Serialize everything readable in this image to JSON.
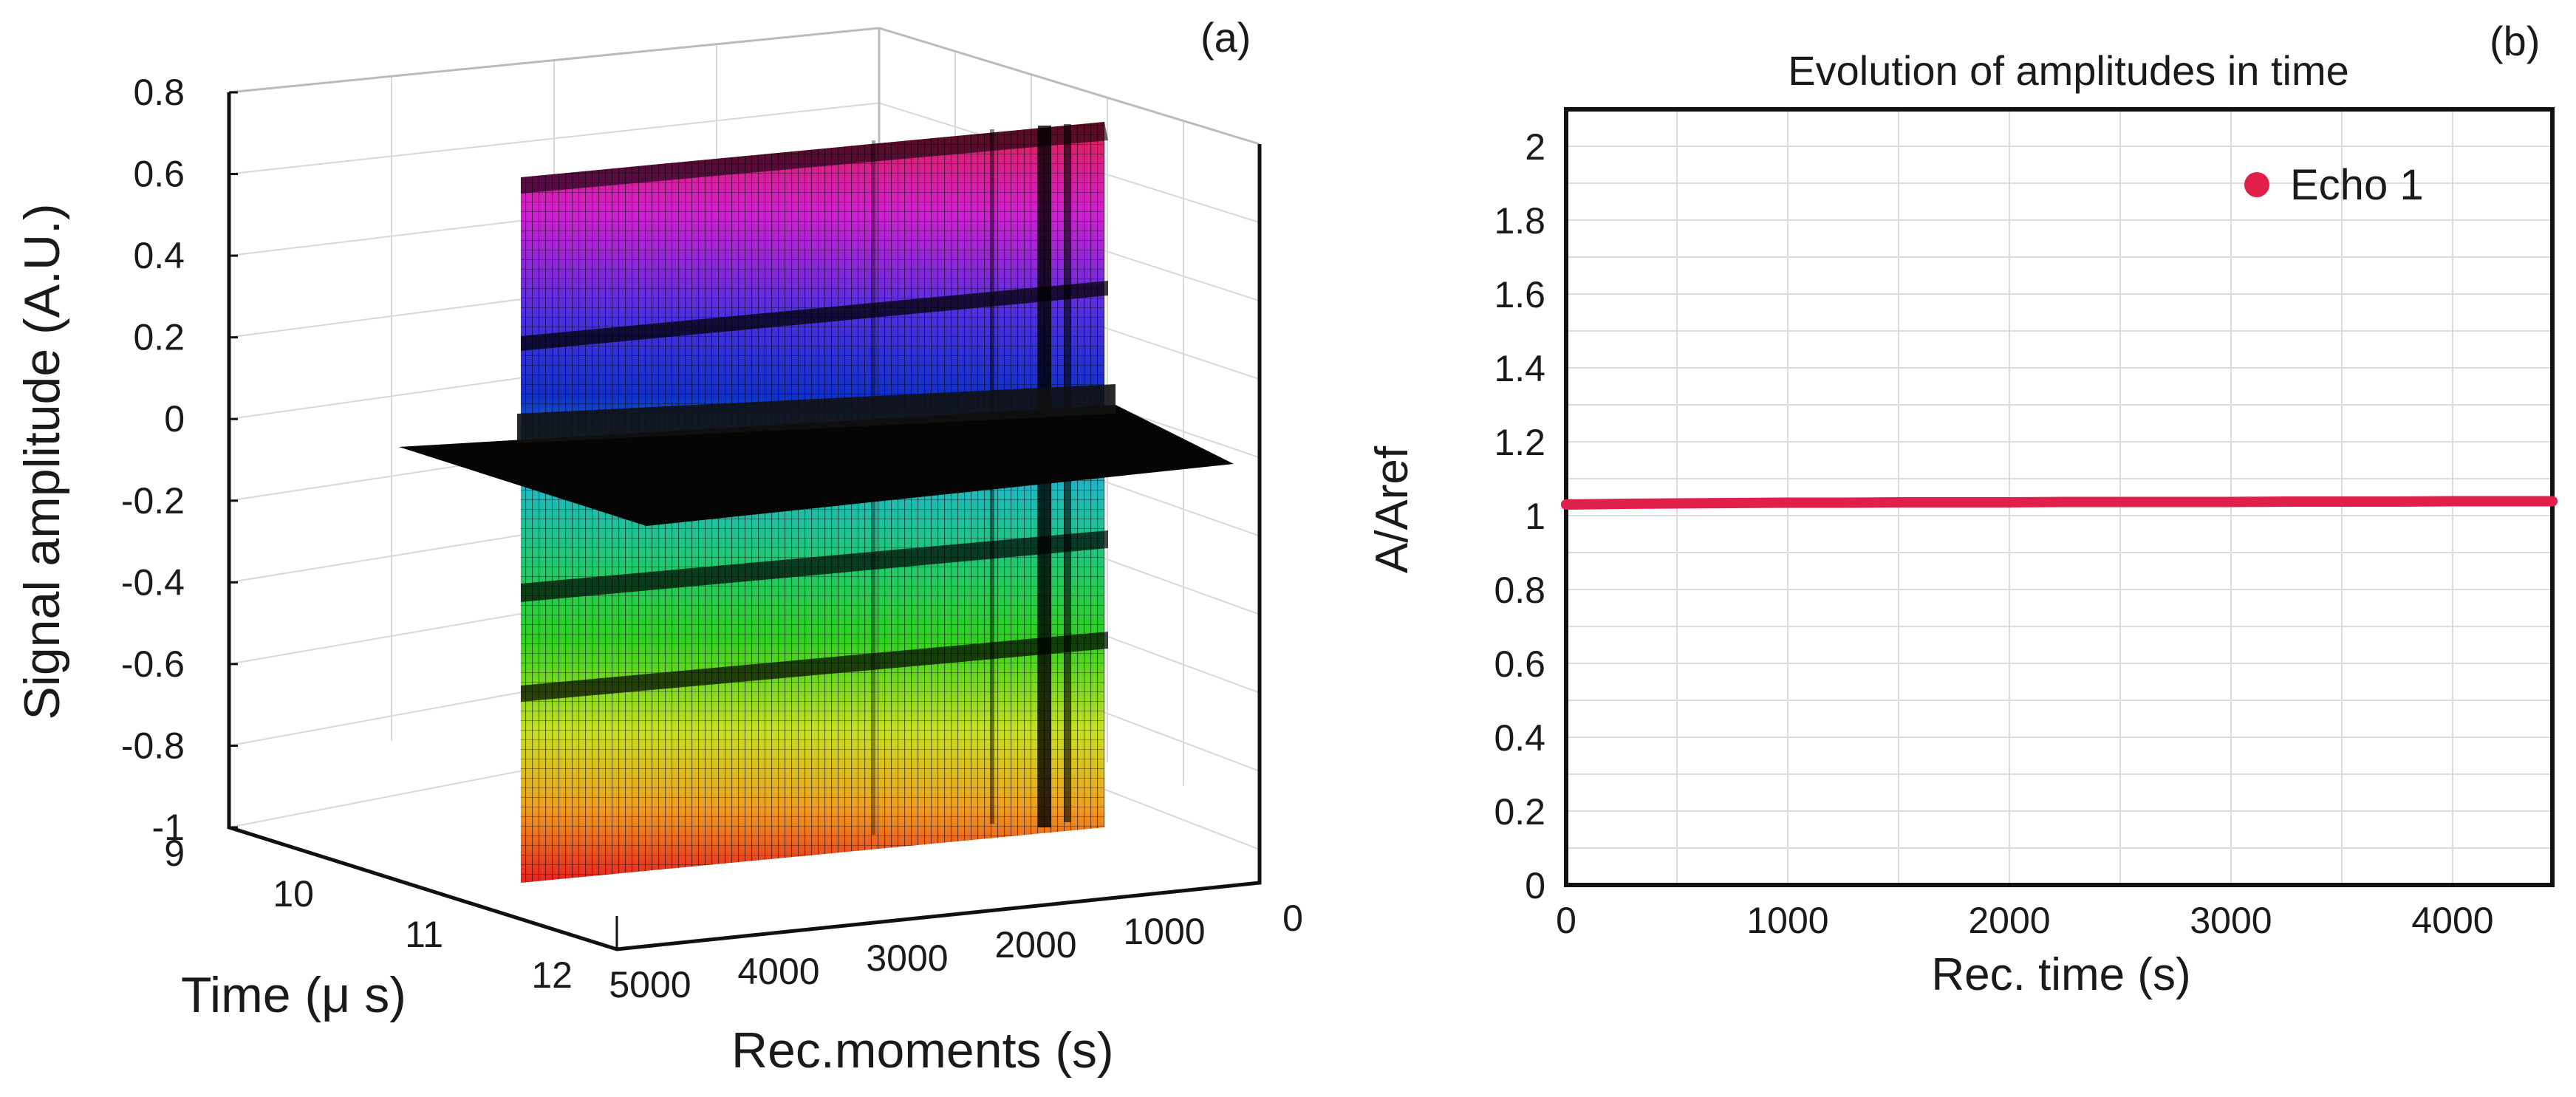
{
  "chart_data": [
    {
      "type": "surface",
      "panel_label": "(a)",
      "zlabel": "Signal amplitude (A.U.)",
      "xlabel": "Rec.moments (s)",
      "ylabel": "Time (μ s)",
      "zlim": [
        -1,
        0.8
      ],
      "z_ticks": [
        "0.8",
        "0.6",
        "0.4",
        "0.2",
        "0",
        "-0.2",
        "-0.4",
        "-0.6",
        "-0.8",
        "-1"
      ],
      "time_ticks": [
        "9",
        "10",
        "11",
        "12"
      ],
      "moment_ticks": [
        "5000",
        "4000",
        "3000",
        "2000",
        "1000",
        "0"
      ],
      "colormap": [
        "#e0204a",
        "#d020d0",
        "#5030e0",
        "#1030c8",
        "#20b8c0",
        "#20c870",
        "#30d020",
        "#c8e020",
        "#f0a020",
        "#e82020"
      ],
      "grid": true
    },
    {
      "type": "scatter",
      "panel_label": "(b)",
      "title": "Evolution of amplitudes in time",
      "xlabel": "Rec. time (s)",
      "ylabel": "A/Aref",
      "xlim": [
        0,
        4450
      ],
      "ylim": [
        0,
        2.1
      ],
      "x_ticks": [
        0,
        1000,
        2000,
        3000,
        4000
      ],
      "y_ticks": [
        0,
        0.2,
        0.4,
        0.6,
        0.8,
        1,
        1.2,
        1.4,
        1.6,
        1.8,
        2
      ],
      "grid": true,
      "legend_position": "top-right",
      "series": [
        {
          "name": "Echo 1",
          "color": "#e0204a",
          "x": [
            0,
            250,
            500,
            750,
            1000,
            1250,
            1500,
            1750,
            2000,
            2250,
            2500,
            2750,
            3000,
            3250,
            3500,
            3750,
            4000,
            4250,
            4450
          ],
          "y": [
            1.03,
            1.032,
            1.033,
            1.034,
            1.035,
            1.035,
            1.036,
            1.036,
            1.036,
            1.037,
            1.037,
            1.037,
            1.037,
            1.038,
            1.038,
            1.038,
            1.039,
            1.039,
            1.039
          ]
        }
      ]
    }
  ]
}
